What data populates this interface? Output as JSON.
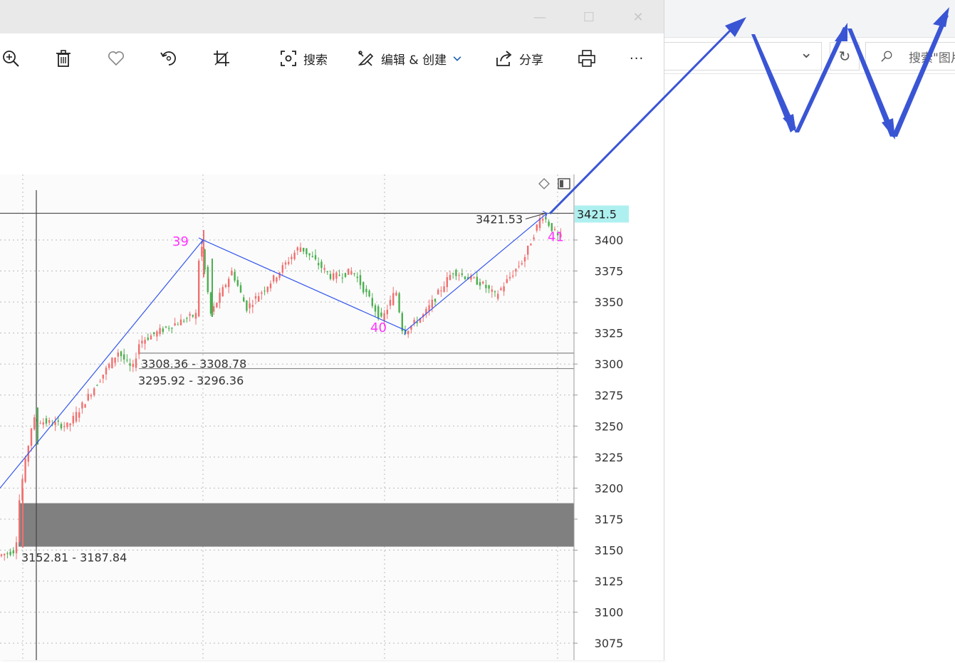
{
  "viewer": {
    "toolbar": {
      "search_label": "搜索",
      "edit_label": "编辑 & 创建",
      "share_label": "分享",
      "more_label": "···"
    },
    "window_controls": {
      "minimize": "—",
      "maximize": "☐",
      "close": "✕"
    }
  },
  "explorer": {
    "search_placeholder": "搜索\"图片\"",
    "dropdown_glyph": "⌄",
    "refresh_glyph": "↻"
  },
  "chart_data": {
    "type": "candlestick",
    "current_price_label": "3421.5",
    "y_ticks": [
      "3400",
      "3375",
      "3350",
      "3325",
      "3300",
      "3275",
      "3250",
      "3225",
      "3200",
      "3175",
      "3150",
      "3125",
      "3100",
      "3075"
    ],
    "y_tick_values": [
      3400,
      3375,
      3350,
      3325,
      3300,
      3275,
      3250,
      3225,
      3200,
      3175,
      3150,
      3125,
      3100,
      3075
    ],
    "ylim": [
      3065,
      3445
    ],
    "wave_labels": [
      {
        "text": "39",
        "price": 3400
      },
      {
        "text": "40",
        "price": 3327
      },
      {
        "text": "41",
        "price": 3421.53
      }
    ],
    "price_annotations": [
      {
        "text": "3421.53",
        "price": 3421.53
      },
      {
        "text": "3308.36 - 3308.78",
        "price": 3308.5
      },
      {
        "text": "3295.92 - 3296.36",
        "price": 3296.1
      },
      {
        "text": "3152.81 - 3187.84",
        "price": 3152.81
      }
    ],
    "zone": {
      "low": 3152.81,
      "high": 3187.84
    },
    "horizontal_lines": [
      3421.53,
      3308.78,
      3296.36
    ],
    "colors": {
      "up": "#f07070",
      "down": "#4caf50",
      "wave_line": "#3355ee",
      "label": "#ff33ff",
      "zone": "#808080",
      "price_tag": "#aef0f0"
    }
  },
  "annotation_arrows_color": "#3a55d4"
}
